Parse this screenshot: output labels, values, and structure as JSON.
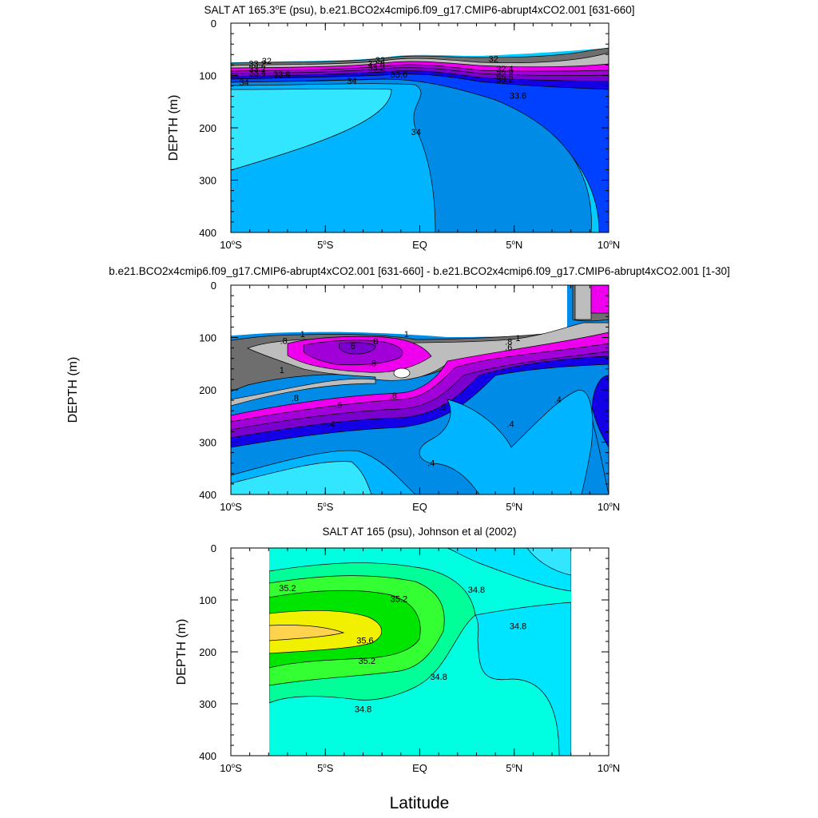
{
  "figure": {
    "xlabel": "Latitude"
  },
  "colors": {
    "salt_fill": [
      "#6e6e6e",
      "#bdbdbd",
      "#ee00ee",
      "#a100d8",
      "#7a00d0",
      "#1400e6",
      "#0040ff",
      "#008ce6",
      "#00b4ff",
      "#00ccff",
      "#33e6ff"
    ],
    "obs_fill": [
      "#00e5ff",
      "#00ffe0",
      "#00ff99",
      "#33ff33",
      "#00e500",
      "#f0f000",
      "#ffd34d"
    ]
  },
  "chart_data": [
    {
      "type": "contour",
      "title_parts": [
        "SALT AT 165.3",
        "o",
        "E (psu), b.e21.BCO2x4cmip6.f09_g17.CMIP6-abrupt4xCO2.001 [631-660]"
      ],
      "ylabel": "DEPTH (m)",
      "xlim": [
        -10,
        10
      ],
      "ylim": [
        400,
        0
      ],
      "y_reversed": true,
      "xticks": [
        {
          "value": -10,
          "num": "10",
          "hemi": "S"
        },
        {
          "value": -5,
          "num": "5",
          "hemi": "S"
        },
        {
          "value": 0,
          "num": "EQ",
          "hemi": ""
        },
        {
          "value": 5,
          "num": "5",
          "hemi": "N"
        },
        {
          "value": 10,
          "num": "10",
          "hemi": "N"
        }
      ],
      "yticks": [
        0,
        100,
        200,
        300,
        400
      ],
      "contour_labels": [
        {
          "text": "32",
          "x": -8.1,
          "y": 72
        },
        {
          "text": "33.2",
          "x": -8.6,
          "y": 77
        },
        {
          "text": "33.2",
          "x": -8.6,
          "y": 87
        },
        {
          "text": "33.4",
          "x": -8.6,
          "y": 95
        },
        {
          "text": "33.6",
          "x": -7.3,
          "y": 98
        },
        {
          "text": "34",
          "x": -9.3,
          "y": 113
        },
        {
          "text": "32",
          "x": -2.1,
          "y": 70
        },
        {
          "text": "32.8",
          "x": -2.3,
          "y": 77
        },
        {
          "text": "33.2",
          "x": -2.3,
          "y": 85
        },
        {
          "text": "33.6",
          "x": -1.1,
          "y": 98
        },
        {
          "text": "34",
          "x": -3.6,
          "y": 110
        },
        {
          "text": "32",
          "x": 3.9,
          "y": 68
        },
        {
          "text": "32.4",
          "x": 4.5,
          "y": 87
        },
        {
          "text": "32.8",
          "x": 4.5,
          "y": 96
        },
        {
          "text": "33.2",
          "x": 4.5,
          "y": 107
        },
        {
          "text": "33.6",
          "x": 5.2,
          "y": 138
        },
        {
          "text": "34",
          "x": -0.2,
          "y": 208
        }
      ]
    },
    {
      "type": "contour",
      "title": "b.e21.BCO2x4cmip6.f09_g17.CMIP6-abrupt4xCO2.001 [631-660] - b.e21.BCO2x4cmip6.f09_g17.CMIP6-abrupt4xCO2.001 [1-30]",
      "ylabel": "DEPTH (m)",
      "xlim": [
        -10,
        10
      ],
      "ylim": [
        400,
        0
      ],
      "y_reversed": true,
      "xticks": [
        {
          "value": -10,
          "num": "10",
          "hemi": "S"
        },
        {
          "value": -5,
          "num": "5",
          "hemi": "S"
        },
        {
          "value": 0,
          "num": "EQ",
          "hemi": ""
        },
        {
          "value": 5,
          "num": "5",
          "hemi": "N"
        },
        {
          "value": 10,
          "num": "10",
          "hemi": "N"
        }
      ],
      "yticks": [
        0,
        100,
        200,
        300,
        400
      ],
      "contour_labels": [
        {
          "text": "1",
          "x": -6.2,
          "y": 93
        },
        {
          "text": ".8",
          "x": -7.2,
          "y": 106
        },
        {
          "text": ".6",
          "x": -3.6,
          "y": 116
        },
        {
          "text": ".8",
          "x": -2.4,
          "y": 107
        },
        {
          "text": "1",
          "x": -0.7,
          "y": 93
        },
        {
          "text": ".8",
          "x": -1.4,
          "y": 211
        },
        {
          "text": ".8",
          "x": -2.5,
          "y": 149
        },
        {
          "text": "1",
          "x": -7.3,
          "y": 162
        },
        {
          "text": ".8",
          "x": -6.6,
          "y": 215
        },
        {
          "text": ".6",
          "x": -4.3,
          "y": 228
        },
        {
          "text": ".6",
          "x": 1.2,
          "y": 233
        },
        {
          "text": ".4",
          "x": -4.7,
          "y": 265
        },
        {
          "text": ".4",
          "x": 0.6,
          "y": 340
        },
        {
          "text": ".4",
          "x": 4.8,
          "y": 265
        },
        {
          "text": ".4",
          "x": 7.3,
          "y": 218
        },
        {
          "text": "1",
          "x": 5.2,
          "y": 101
        },
        {
          "text": ".8",
          "x": 4.7,
          "y": 108
        },
        {
          "text": ".6",
          "x": 4.7,
          "y": 118
        }
      ]
    },
    {
      "type": "contour",
      "title": "SALT AT 165 (psu), Johnson et al (2002)",
      "ylabel": "DEPTH (m)",
      "xlim": [
        -10,
        10
      ],
      "ylim": [
        400,
        0
      ],
      "y_reversed": true,
      "data_range_x": [
        -8,
        8
      ],
      "xticks": [
        {
          "value": -10,
          "num": "10",
          "hemi": "S"
        },
        {
          "value": -5,
          "num": "5",
          "hemi": "S"
        },
        {
          "value": 0,
          "num": "EQ",
          "hemi": ""
        },
        {
          "value": 5,
          "num": "5",
          "hemi": "N"
        },
        {
          "value": 10,
          "num": "10",
          "hemi": "N"
        }
      ],
      "yticks": [
        0,
        100,
        200,
        300,
        400
      ],
      "contour_labels": [
        {
          "text": "35.2",
          "x": -7.0,
          "y": 77
        },
        {
          "text": "35.2",
          "x": -1.1,
          "y": 98
        },
        {
          "text": "34.8",
          "x": 3.0,
          "y": 80
        },
        {
          "text": "35.6",
          "x": -2.9,
          "y": 178
        },
        {
          "text": "35.2",
          "x": -2.8,
          "y": 217
        },
        {
          "text": "34.8",
          "x": 5.2,
          "y": 150
        },
        {
          "text": "34.8",
          "x": 1.0,
          "y": 248
        },
        {
          "text": "34.8",
          "x": -3.0,
          "y": 310
        }
      ]
    }
  ]
}
